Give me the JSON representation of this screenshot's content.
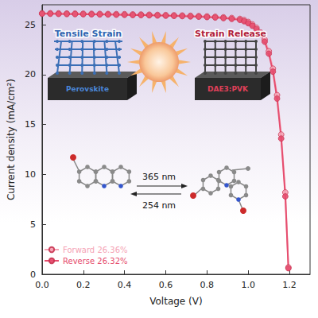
{
  "chart_data": {
    "type": "line",
    "x_label": "Voltage (V)",
    "y_label": "Current density (mA/cm²)",
    "x": [
      0,
      0.04,
      0.08,
      0.12,
      0.16,
      0.2,
      0.24,
      0.28,
      0.32,
      0.36,
      0.4,
      0.44,
      0.48,
      0.52,
      0.56,
      0.6,
      0.64,
      0.68,
      0.72,
      0.76,
      0.8,
      0.84,
      0.88,
      0.92,
      0.96,
      0.98,
      1.0,
      1.02,
      1.04,
      1.06,
      1.08,
      1.1,
      1.12,
      1.14,
      1.16,
      1.18,
      1.195
    ],
    "series": [
      {
        "name": "Forward 26.36%",
        "color": "#f5a3b5",
        "marker": "circle",
        "values": [
          26.15,
          26.15,
          26.14,
          26.13,
          26.12,
          26.11,
          26.1,
          26.09,
          26.08,
          26.07,
          26.06,
          26.04,
          26.03,
          26.01,
          25.99,
          25.97,
          25.95,
          25.93,
          25.9,
          25.87,
          25.84,
          25.8,
          25.75,
          25.68,
          25.59,
          25.47,
          25.28,
          25.04,
          24.7,
          24.22,
          23.5,
          22.35,
          20.6,
          17.95,
          14.0,
          8.2,
          0.7
        ]
      },
      {
        "name": "Reverse 26.32%",
        "color": "#e64d6e",
        "marker": "circle",
        "values": [
          26.1,
          26.1,
          26.08,
          26.07,
          26.06,
          26.05,
          26.04,
          26.03,
          26.02,
          26.0,
          25.99,
          25.97,
          25.96,
          25.94,
          25.92,
          25.9,
          25.88,
          25.86,
          25.83,
          25.8,
          25.76,
          25.72,
          25.66,
          25.58,
          25.48,
          25.35,
          25.15,
          24.9,
          24.55,
          24.05,
          23.3,
          22.1,
          20.3,
          17.6,
          13.6,
          7.8,
          0.6
        ]
      }
    ],
    "xlim": [
      0,
      1.3
    ],
    "xticks": [
      {
        "value": 0,
        "label": "0.0"
      },
      {
        "value": 0.2,
        "label": "0.2"
      },
      {
        "value": 0.4,
        "label": "0.4"
      },
      {
        "value": 0.6,
        "label": "0.6"
      },
      {
        "value": 0.8,
        "label": "0.8"
      },
      {
        "value": 1.0,
        "label": "1.0"
      },
      {
        "value": 1.2,
        "label": "1.2"
      }
    ],
    "ylim": [
      0,
      27
    ],
    "yticks": [
      0,
      5,
      10,
      15,
      20,
      25
    ],
    "grid": false,
    "legend": "lower left",
    "annotations": [
      "Tensile Strain",
      "Strain Release",
      "Perovskite",
      "DAE3:PVK",
      "365 nm",
      "254 nm"
    ]
  }
}
